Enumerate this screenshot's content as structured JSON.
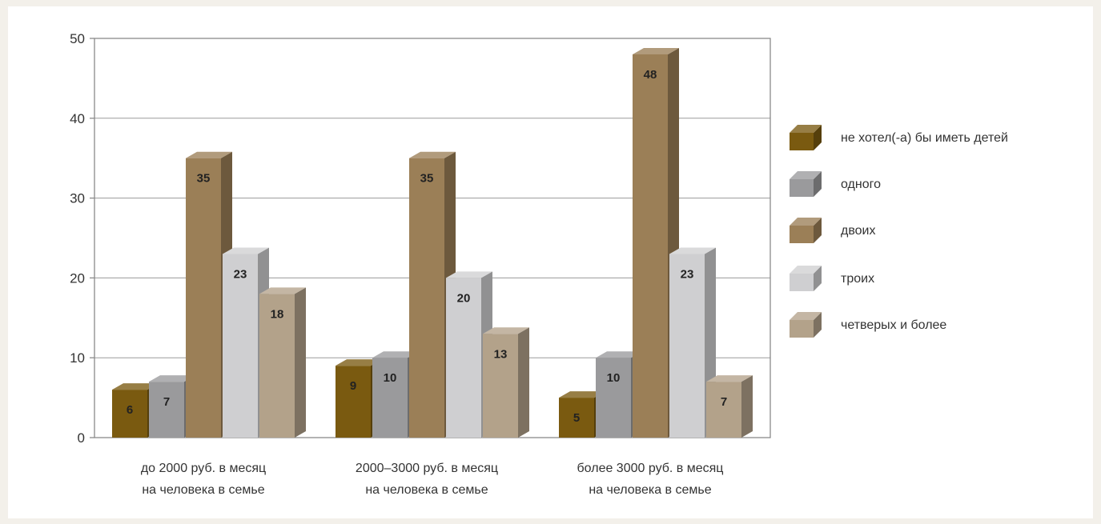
{
  "chart_data": {
    "type": "bar",
    "categories": [
      [
        "до 2000 руб. в месяц",
        "на человека в семье"
      ],
      [
        "2000–3000 руб. в месяц",
        "на человека в семье"
      ],
      [
        "более 3000 руб. в месяц",
        "на человека в семье"
      ]
    ],
    "series": [
      {
        "name": "не хотел(-а) бы иметь детей",
        "values": [
          6,
          9,
          5
        ],
        "color": "#7a5a10"
      },
      {
        "name": "одного",
        "values": [
          7,
          10,
          10
        ],
        "color": "#9a9a9c"
      },
      {
        "name": "двоих",
        "values": [
          35,
          35,
          48
        ],
        "color": "#9b7f57"
      },
      {
        "name": "троих",
        "values": [
          23,
          20,
          23
        ],
        "color": "#cfcfd1"
      },
      {
        "name": "четверых и более",
        "values": [
          18,
          13,
          7
        ],
        "color": "#b3a28a"
      }
    ],
    "data_labels": [
      [
        "6",
        "9",
        "5"
      ],
      [
        "7",
        "10",
        "10"
      ],
      [
        "35",
        "35",
        "48"
      ],
      [
        "23",
        "20",
        "23"
      ],
      [
        "18",
        "13",
        "7"
      ]
    ],
    "ylim": [
      0,
      50
    ],
    "yticks": [
      "0",
      "10",
      "20",
      "30",
      "40",
      "50"
    ],
    "grid": true,
    "legend": "right",
    "title": "",
    "xlabel": "",
    "ylabel": ""
  }
}
